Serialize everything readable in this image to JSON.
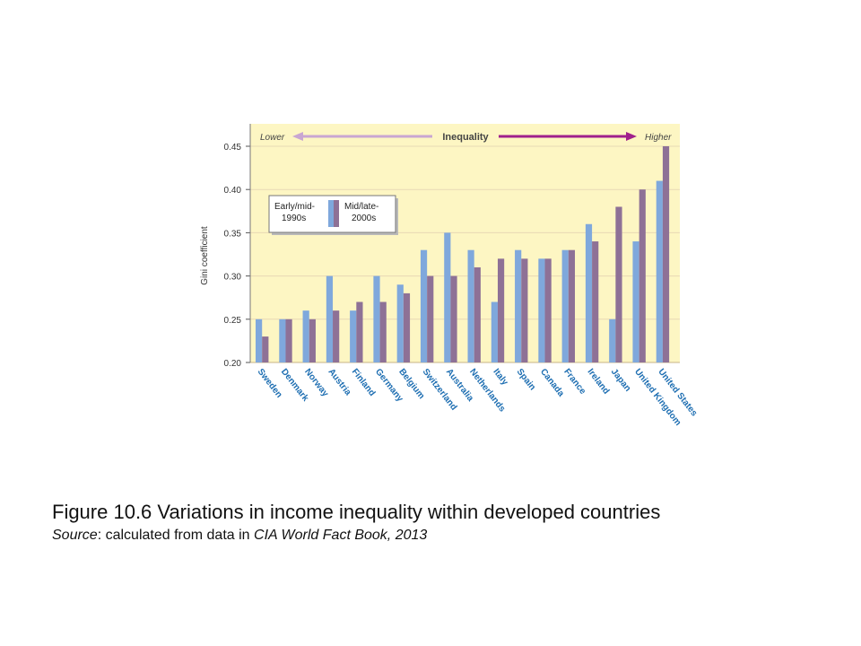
{
  "chart_data": {
    "type": "bar",
    "banner": {
      "left": "Lower",
      "center": "Inequality",
      "right": "Higher"
    },
    "ylabel": "Gini coefficient",
    "xlabel": "",
    "ylim": [
      0.2,
      0.45
    ],
    "yticks": [
      "0.20",
      "0.25",
      "0.30",
      "0.35",
      "0.40",
      "0.45"
    ],
    "ytick_values": [
      0.2,
      0.25,
      0.3,
      0.35,
      0.4,
      0.45
    ],
    "grid": true,
    "legend_position": "top-left",
    "categories": [
      "Sweden",
      "Denmark",
      "Norway",
      "Austria",
      "Finland",
      "Germany",
      "Belgium",
      "Switzerland",
      "Australia",
      "Netherlands",
      "Italy",
      "Spain",
      "Canada",
      "France",
      "Ireland",
      "Japan",
      "United Kingdom",
      "United States"
    ],
    "series": [
      {
        "name": "Early/mid-1990s",
        "legend_lines": [
          "Early/mid-",
          "1990s"
        ],
        "color": "#7FA8DC",
        "values": [
          0.25,
          0.25,
          0.26,
          0.3,
          0.26,
          0.3,
          0.29,
          0.33,
          0.35,
          0.33,
          0.27,
          0.33,
          0.32,
          0.33,
          0.36,
          0.25,
          0.34,
          0.41
        ]
      },
      {
        "name": "Mid/late-2000s",
        "legend_lines": [
          "Mid/late-",
          "2000s"
        ],
        "color": "#8E7196",
        "values": [
          0.23,
          0.25,
          0.25,
          0.26,
          0.27,
          0.27,
          0.28,
          0.3,
          0.3,
          0.31,
          0.32,
          0.32,
          0.32,
          0.33,
          0.34,
          0.38,
          0.4,
          0.45
        ]
      }
    ],
    "colors": {
      "plot_bg": "#FDF6C3",
      "tick_label": "#1F6FB2",
      "arrow_left": "#C9A6D2",
      "arrow_right": "#A0208C",
      "grid": "#E8D9B5"
    }
  },
  "caption": {
    "title": "Figure 10.6 Variations in income inequality within developed countries",
    "source_label": "Source",
    "source_rest": ": calculated from data in ",
    "source_italic": "CIA World Fact Book, 2013"
  }
}
